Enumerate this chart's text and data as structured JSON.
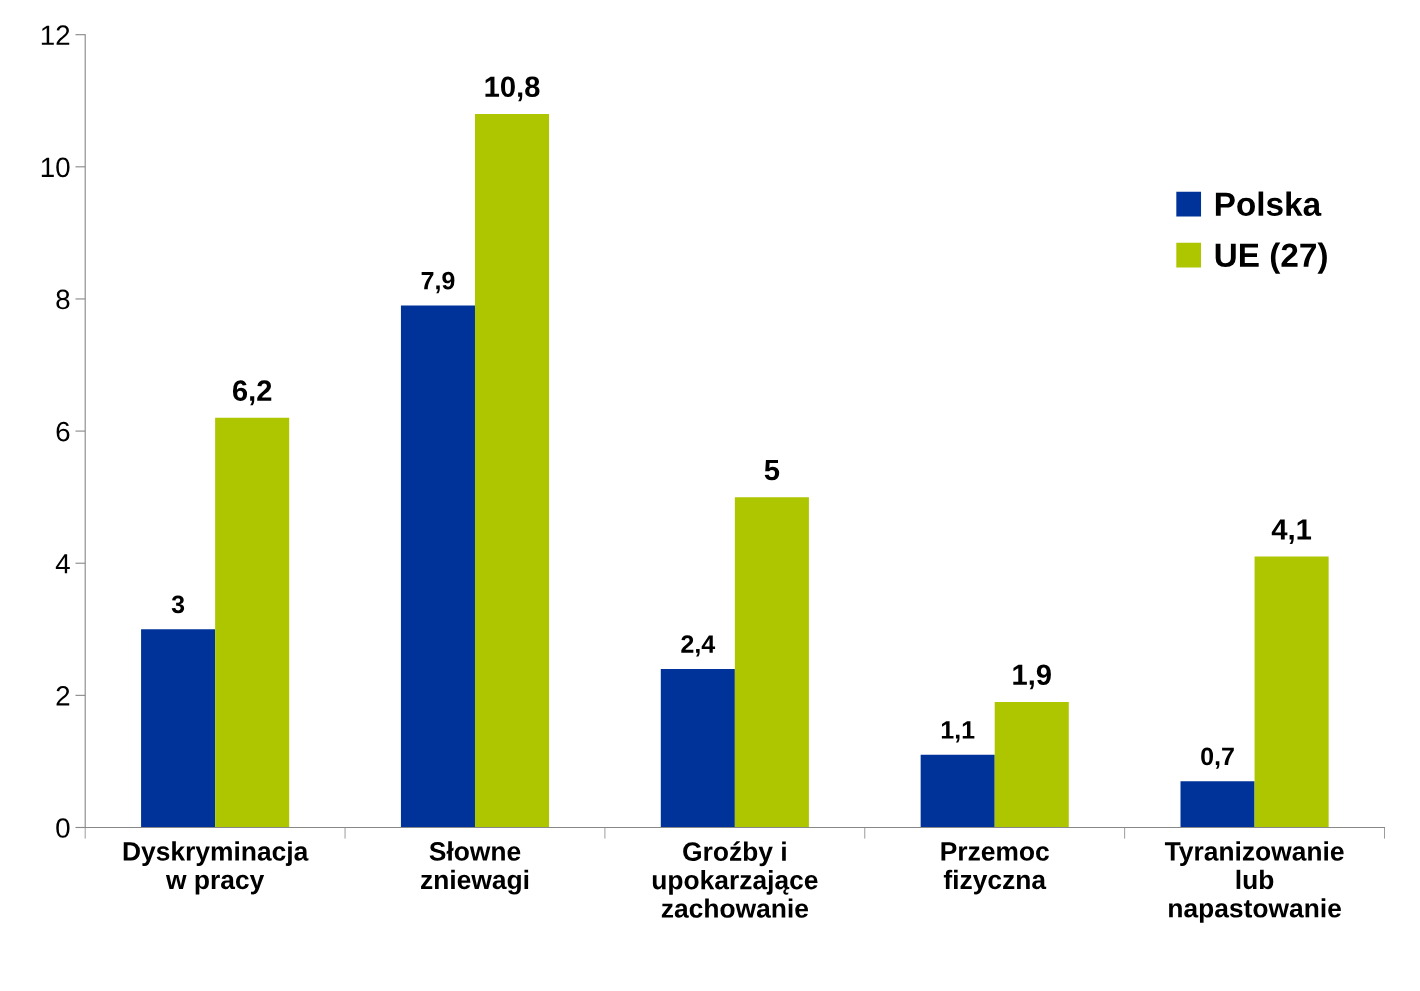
{
  "chart_data": {
    "type": "bar",
    "categories": [
      "Dyskryminacja\nw pracy",
      "Słowne\nzniewagi",
      "Groźby i\nupokarzające\nzachowanie",
      "Przemoc\nfizyczna",
      "Tyranizowanie\nlub\nnapastowanie"
    ],
    "series": [
      {
        "name": "Polska",
        "color": "#003399",
        "values": [
          3,
          7.9,
          2.4,
          1.1,
          0.7
        ],
        "value_labels": [
          "3",
          "7,9",
          "2,4",
          "1,1",
          "0,7"
        ]
      },
      {
        "name": "UE (27)",
        "color": "#adc600",
        "values": [
          6.2,
          10.8,
          5,
          1.9,
          4.1
        ],
        "value_labels": [
          "6,2",
          "10,8",
          "5",
          "1,9",
          "4,1"
        ]
      }
    ],
    "ylim": [
      0,
      12
    ],
    "yticks": [
      0,
      2,
      4,
      6,
      8,
      10,
      12
    ],
    "grid": false,
    "legend": "top right"
  }
}
